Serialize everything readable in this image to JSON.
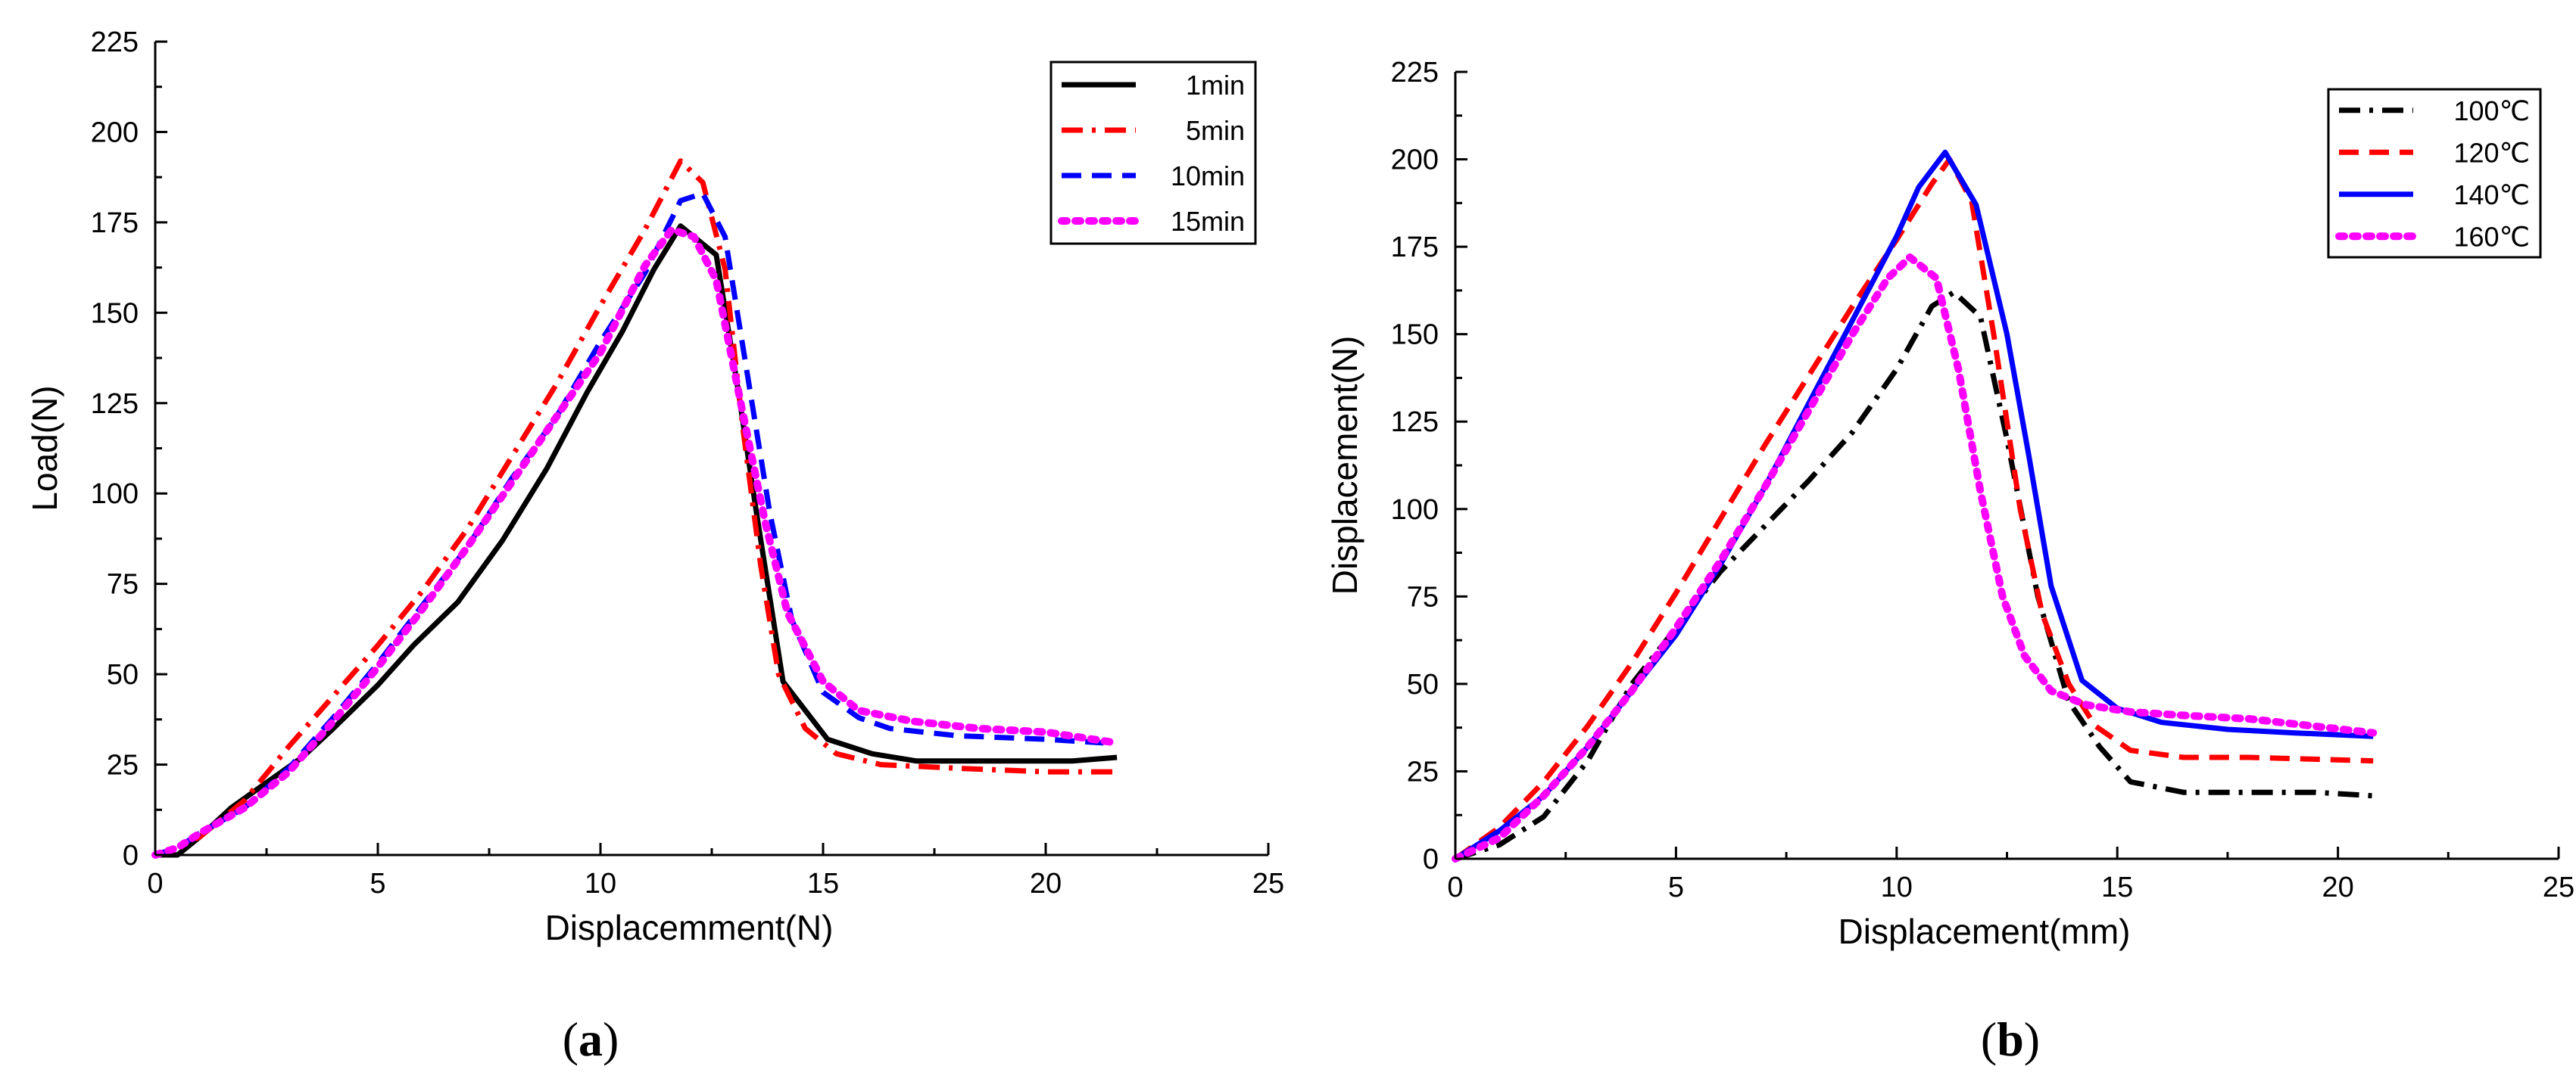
{
  "chart_data": [
    {
      "type": "line",
      "panel": "a",
      "caption": {
        "open": "(",
        "letter": "a",
        "close": ")"
      },
      "xlabel": "Displacemment(N)",
      "ylabel": "Load(N)",
      "xlim": [
        0,
        25
      ],
      "ylim": [
        0,
        225
      ],
      "xticks": [
        0,
        5,
        10,
        15,
        20,
        25
      ],
      "yticks": [
        0,
        25,
        50,
        75,
        100,
        125,
        150,
        175,
        200,
        225
      ],
      "grid": false,
      "legend_position": "top-right",
      "series": [
        {
          "name": "1min",
          "color": "#000000",
          "dash": "solid",
          "x": [
            0,
            0.5,
            1,
            1.7,
            2.5,
            3.3,
            4,
            5,
            5.8,
            6.8,
            7.8,
            8.8,
            9.7,
            10.5,
            11.2,
            11.8,
            12.6,
            13.1,
            13.5,
            14.1,
            15.1,
            16.1,
            17.1,
            18.3,
            19.5,
            20.6,
            21.6
          ],
          "y": [
            0,
            0,
            5,
            13,
            20,
            27,
            35,
            47,
            58,
            70,
            87,
            107,
            128,
            145,
            162,
            174,
            166,
            128,
            95,
            48,
            32,
            28,
            26,
            26,
            26,
            26,
            27
          ]
        },
        {
          "name": "5min",
          "color": "#ff0000",
          "dash": "dashdot",
          "x": [
            0,
            0.5,
            1,
            2,
            3,
            4,
            5,
            6,
            7,
            8,
            9,
            10,
            11,
            11.8,
            12.3,
            12.8,
            13.2,
            13.6,
            14,
            14.6,
            15.3,
            16.3,
            18,
            20,
            21.6
          ],
          "y": [
            0,
            2,
            5,
            15,
            30,
            44,
            58,
            73,
            90,
            110,
            130,
            152,
            173,
            192,
            186,
            162,
            118,
            80,
            50,
            35,
            28,
            25,
            24,
            23,
            23
          ]
        },
        {
          "name": "10min",
          "color": "#0000ff",
          "dash": "dash",
          "x": [
            0,
            0.5,
            1,
            2,
            3,
            4,
            5,
            6,
            7,
            8,
            9,
            10,
            11,
            11.8,
            12.3,
            12.8,
            13.3,
            13.8,
            14.3,
            15,
            15.8,
            16.5,
            18,
            20,
            21.3
          ],
          "y": [
            0,
            2,
            6,
            13,
            24,
            38,
            53,
            69,
            85,
            104,
            121,
            142,
            161,
            181,
            183,
            171,
            133,
            95,
            65,
            45,
            38,
            35,
            33,
            32,
            31
          ]
        },
        {
          "name": "15min",
          "color": "#ff00ff",
          "dash": "dot",
          "x": [
            0,
            0.5,
            1,
            2,
            3,
            4,
            5,
            6,
            7,
            8,
            9,
            10,
            11,
            11.6,
            12.1,
            12.6,
            13.2,
            13.7,
            14.2,
            15,
            15.8,
            17,
            18.5,
            20,
            21.6
          ],
          "y": [
            0,
            2,
            6,
            13,
            23,
            37,
            52,
            68,
            85,
            103,
            121,
            139,
            163,
            173,
            171,
            159,
            122,
            92,
            67,
            48,
            40,
            37,
            35,
            34,
            31
          ]
        }
      ]
    },
    {
      "type": "line",
      "panel": "b",
      "caption": {
        "open": "(",
        "letter": "b",
        "close": ")"
      },
      "xlabel": "Displacement(mm)",
      "ylabel": "Displacement(N)",
      "xlim": [
        0,
        25
      ],
      "ylim": [
        0,
        225
      ],
      "xticks": [
        0,
        5,
        10,
        15,
        20,
        25
      ],
      "yticks": [
        0,
        25,
        50,
        75,
        100,
        125,
        150,
        175,
        200,
        225
      ],
      "grid": false,
      "legend_position": "top-right",
      "series": [
        {
          "name": "100℃",
          "color": "#000000",
          "dash": "dashdot",
          "x": [
            0,
            1,
            2,
            3,
            4,
            5,
            6,
            7,
            8,
            9,
            10,
            10.8,
            11.3,
            11.9,
            12.5,
            13.2,
            13.9,
            14.6,
            15.3,
            16.5,
            18,
            19.5,
            20.8
          ],
          "y": [
            0,
            4,
            12,
            28,
            50,
            66,
            82,
            95,
            108,
            122,
            140,
            158,
            162,
            155,
            120,
            75,
            45,
            32,
            22,
            19,
            19,
            19,
            18
          ]
        },
        {
          "name": "120℃",
          "color": "#ff0000",
          "dash": "dash",
          "x": [
            0,
            1,
            2,
            3,
            4,
            5,
            6,
            7,
            8,
            9,
            10,
            10.8,
            11.2,
            11.7,
            12.2,
            12.8,
            13.3,
            13.9,
            14.5,
            15.3,
            16.5,
            18,
            20.8
          ],
          "y": [
            0,
            9,
            22,
            38,
            56,
            76,
            97,
            118,
            138,
            158,
            177,
            193,
            200,
            188,
            150,
            100,
            70,
            50,
            38,
            31,
            29,
            29,
            28
          ]
        },
        {
          "name": "140℃",
          "color": "#0000ff",
          "dash": "solid",
          "x": [
            0,
            1,
            2,
            3,
            4,
            5,
            6,
            7,
            8,
            9,
            10,
            10.5,
            11.1,
            11.8,
            12.5,
            13,
            13.5,
            14.2,
            15,
            16,
            17.5,
            19,
            20.8
          ],
          "y": [
            0,
            8,
            18,
            32,
            48,
            64,
            84,
            106,
            130,
            154,
            178,
            192,
            202,
            187,
            150,
            115,
            78,
            51,
            43,
            39,
            37,
            36,
            35
          ]
        },
        {
          "name": "160℃",
          "color": "#ff00ff",
          "dash": "dot",
          "x": [
            0,
            1,
            2,
            3,
            4,
            5,
            6,
            7,
            8,
            9,
            9.8,
            10.3,
            10.9,
            11.4,
            11.9,
            12.4,
            12.9,
            13.5,
            14.3,
            15.3,
            16.5,
            18,
            20.8
          ],
          "y": [
            0,
            6,
            18,
            32,
            48,
            66,
            85,
            106,
            128,
            150,
            166,
            172,
            166,
            140,
            105,
            75,
            58,
            48,
            44,
            42,
            41,
            40,
            36
          ]
        }
      ]
    }
  ]
}
